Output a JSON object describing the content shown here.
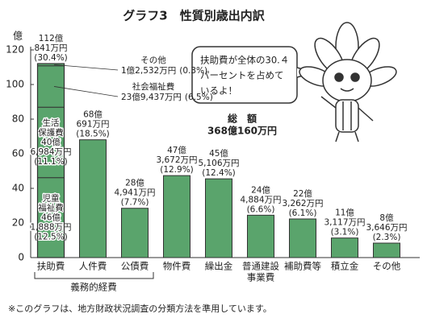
{
  "chart_data": {
    "type": "bar",
    "title": "グラフ3　性質別歳出内訳",
    "y_unit": "億",
    "categories": [
      "扶助費",
      "人件費",
      "公債費",
      "物件費",
      "繰出金",
      [
        "普通建設",
        "事業費"
      ],
      "補助費等",
      "積立金",
      "その他"
    ],
    "values": [
      112.0841,
      68.0691,
      28.4941,
      47.3672,
      45.5106,
      24.4884,
      22.3262,
      11.3117,
      8.3646
    ],
    "value_labels": [
      [
        "112億",
        "841万円",
        "(30.4%)"
      ],
      [
        "68億",
        "691万円",
        "(18.5%)"
      ],
      [
        "28億",
        "4,941万円",
        "(7.7%)"
      ],
      [
        "47億",
        "3,672万円",
        "(12.9%)"
      ],
      [
        "45億",
        "5,106万円",
        "(12.4%)"
      ],
      [
        "24億",
        "4,884万円",
        "(6.6%)"
      ],
      [
        "22億",
        "3,262万円",
        "(6.1%)"
      ],
      [
        "11億",
        "3,117万円",
        "(3.1%)"
      ],
      [
        "8億",
        "3,646万円",
        "(2.3%)"
      ]
    ],
    "color": "#5aa46c",
    "breakdown": [
      {
        "name": [
          "児童",
          "福祉費"
        ],
        "value": 46.1888,
        "value_label": [
          "46億",
          "1,888万円",
          "(12.5%)"
        ]
      },
      {
        "name": [
          "生活",
          "保護費"
        ],
        "value": 40.6984,
        "value_label": [
          "40億",
          "6,984万円",
          "(11.1%)"
        ]
      },
      {
        "name": [
          "社会福祉費"
        ],
        "value": 23.9437,
        "value_label": [
          "23億9,437万円",
          "(6.5%)"
        ]
      },
      {
        "name": [
          "その他"
        ],
        "value": 1.2532,
        "value_label": [
          "1億2,532万円",
          "(0.3%)"
        ]
      }
    ],
    "ylim": [
      0,
      120
    ],
    "yticks": [
      0,
      20,
      40,
      60,
      80,
      100,
      120
    ],
    "grid": false,
    "total_label": "総　額",
    "total_value_label": "368億160万円",
    "group_label": "義務的経費",
    "speech": [
      "扶助費が全体の30.４",
      "パーセントを占めて",
      "いるよ！"
    ],
    "footnote": "※このグラフは、地方財政状況調査の分類方法を準用しています。"
  }
}
